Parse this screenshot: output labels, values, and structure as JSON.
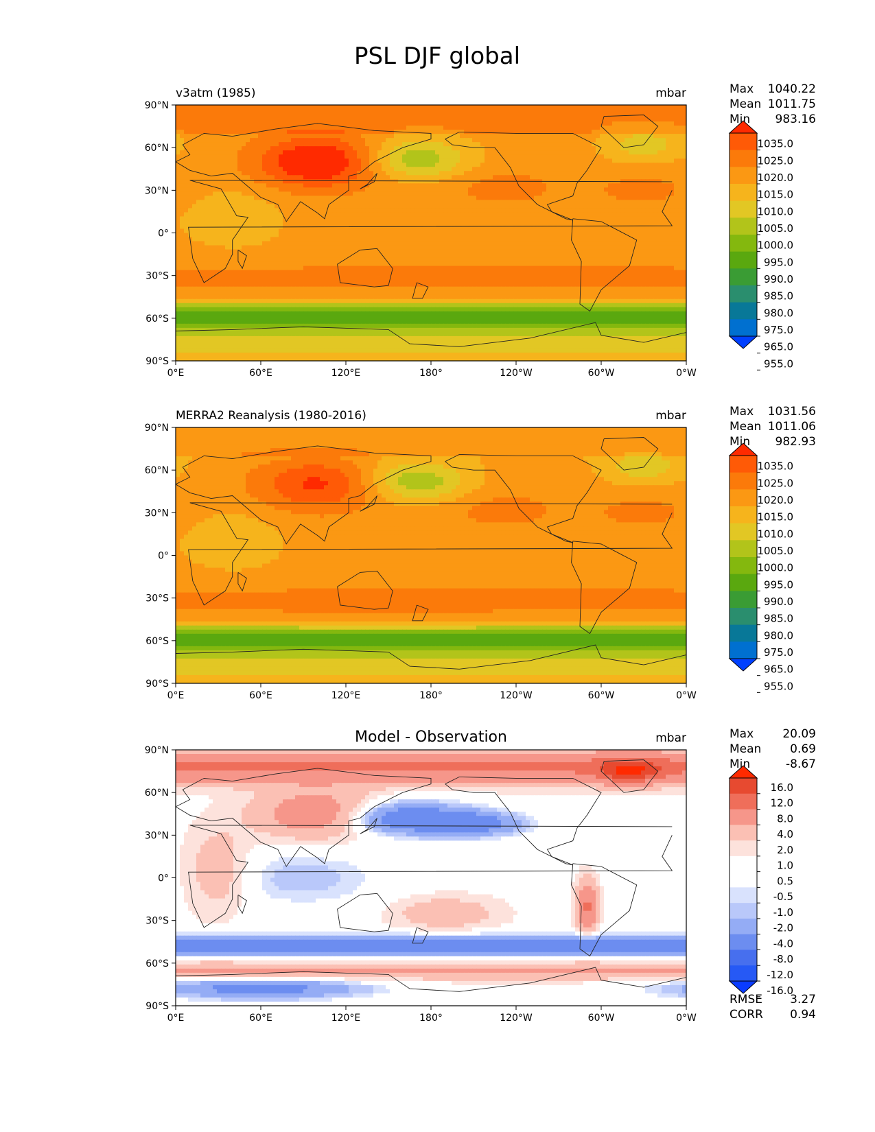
{
  "figure": {
    "title": "PSL DJF global"
  },
  "colors": {
    "abs_levels": [
      "#0040ff",
      "#0070d0",
      "#087898",
      "#2a8e6e",
      "#3a9c34",
      "#5aa80f",
      "#84b80e",
      "#b2c41a",
      "#e2c724",
      "#f6b41c",
      "#fb9813",
      "#fb7a0a",
      "#ff5a06",
      "#ff2a00"
    ],
    "diff_levels": [
      "#0a3cff",
      "#2659f5",
      "#476fee",
      "#6c8df0",
      "#94acf5",
      "#b9c8fa",
      "#d9e2fd",
      "#ffffff",
      "#ffffff",
      "#fde2dc",
      "#fbc0b4",
      "#f6968a",
      "#ef6e5a",
      "#e74a30",
      "#ff2a00"
    ],
    "coast": "#222222"
  },
  "chart_data": [
    {
      "type": "contour-map",
      "title": "v3atm (1985)",
      "units": "mbar",
      "stats": {
        "Max": "1040.22",
        "Mean": "1011.75",
        "Min": "983.16"
      },
      "xlabels": [
        "0°E",
        "60°E",
        "120°E",
        "180°",
        "120°W",
        "60°W",
        "0°W"
      ],
      "ylabels": [
        "90°N",
        "60°N",
        "30°N",
        "0°",
        "30°S",
        "60°S",
        "90°S"
      ],
      "xlim": [
        0,
        360
      ],
      "ylim": [
        -90,
        90
      ],
      "colorbar_ticks": [
        "1035.0",
        "1025.0",
        "1020.0",
        "1015.0",
        "1010.0",
        "1005.0",
        "1000.0",
        "995.0",
        "990.0",
        "985.0",
        "980.0",
        "975.0",
        "965.0",
        "955.0"
      ],
      "color_scale": "abs_levels",
      "field": "model"
    },
    {
      "type": "contour-map",
      "title": "MERRA2 Reanalysis (1980-2016)",
      "units": "mbar",
      "stats": {
        "Max": "1031.56",
        "Mean": "1011.06",
        "Min": "982.93"
      },
      "xlabels": [
        "0°E",
        "60°E",
        "120°E",
        "180°",
        "120°W",
        "60°W",
        "0°W"
      ],
      "ylabels": [
        "90°N",
        "60°N",
        "30°N",
        "0°",
        "30°S",
        "60°S",
        "90°S"
      ],
      "xlim": [
        0,
        360
      ],
      "ylim": [
        -90,
        90
      ],
      "colorbar_ticks": [
        "1035.0",
        "1025.0",
        "1020.0",
        "1015.0",
        "1010.0",
        "1005.0",
        "1000.0",
        "995.0",
        "990.0",
        "985.0",
        "980.0",
        "975.0",
        "965.0",
        "955.0"
      ],
      "color_scale": "abs_levels",
      "field": "obs"
    },
    {
      "type": "contour-map",
      "title": "Model - Observation",
      "units": "mbar",
      "stats": {
        "Max": "20.09",
        "Mean": "0.69",
        "Min": "-8.67"
      },
      "extra_stats": {
        "RMSE": "3.27",
        "CORR": "0.94"
      },
      "xlabels": [
        "0°E",
        "60°E",
        "120°E",
        "180°",
        "120°W",
        "60°W",
        "0°W"
      ],
      "ylabels": [
        "90°N",
        "60°N",
        "30°N",
        "0°",
        "30°S",
        "60°S",
        "90°S"
      ],
      "xlim": [
        0,
        360
      ],
      "ylim": [
        -90,
        90
      ],
      "colorbar_ticks": [
        "16.0",
        "12.0",
        "8.0",
        "4.0",
        "2.0",
        "1.0",
        "0.5",
        "-0.5",
        "-1.0",
        "-2.0",
        "-4.0",
        "-8.0",
        "-12.0",
        "-16.0"
      ],
      "color_scale": "diff_levels",
      "field": "diff"
    }
  ]
}
